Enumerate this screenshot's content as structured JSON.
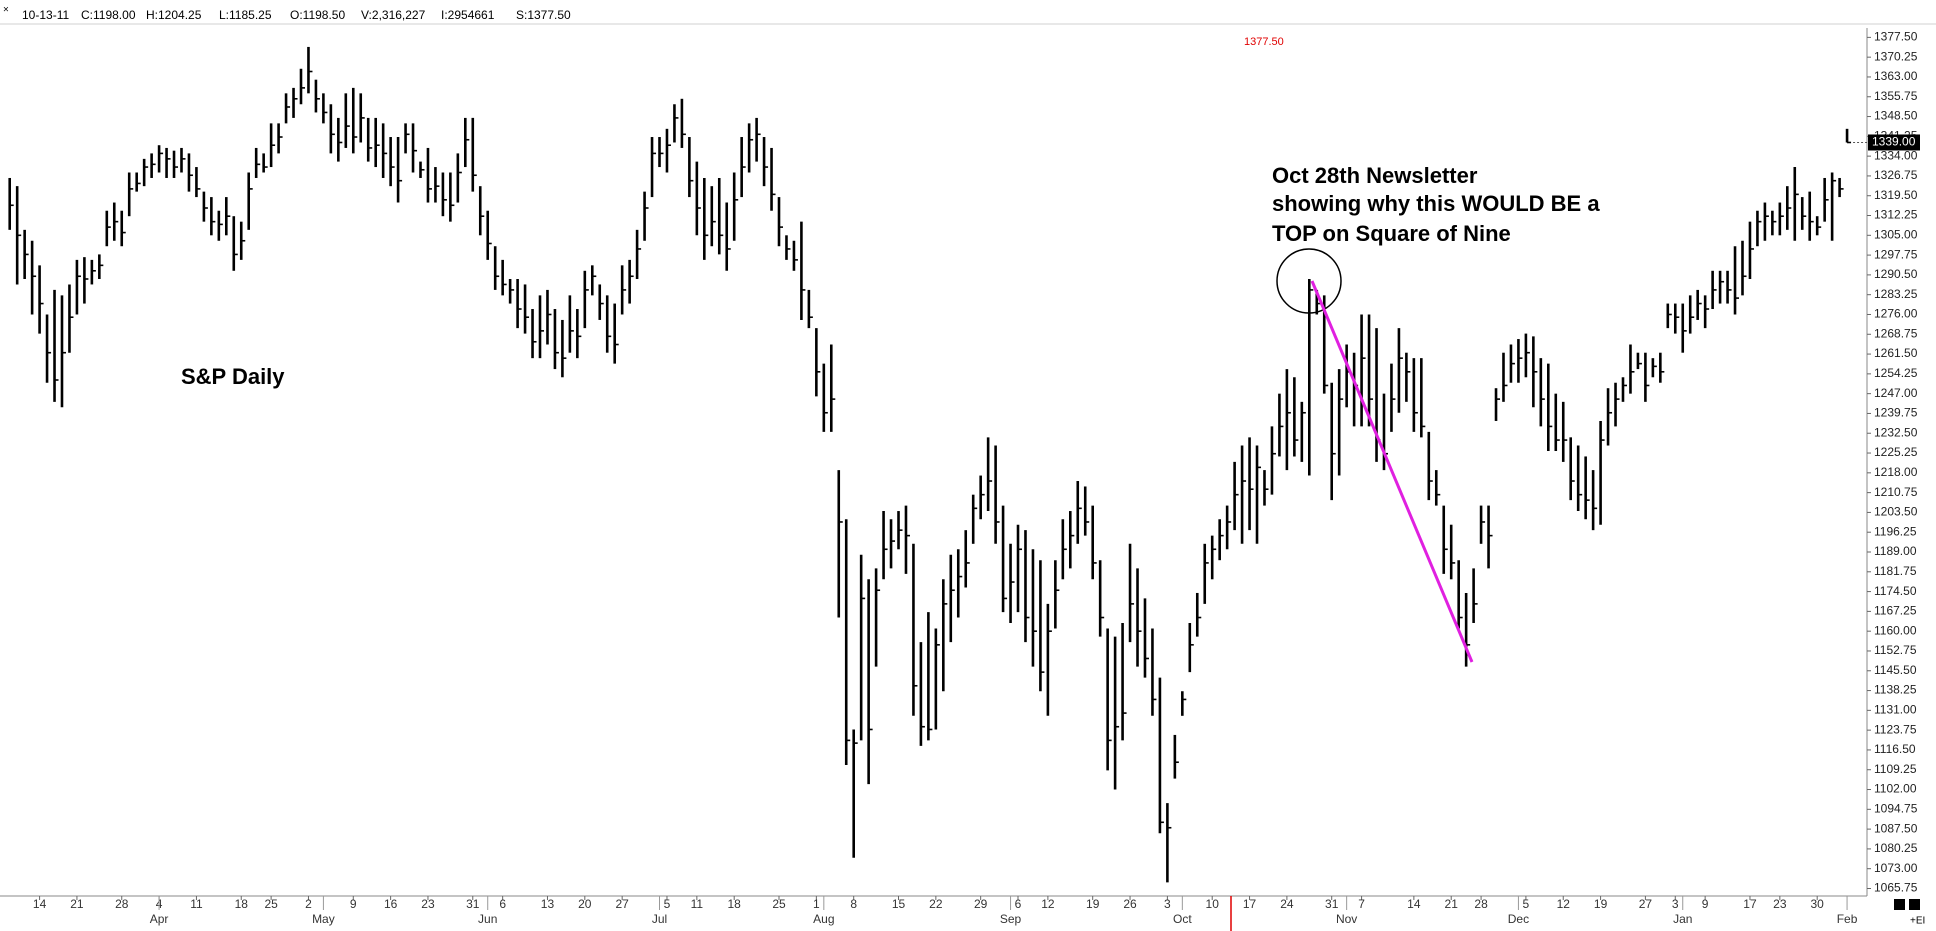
{
  "chart_data": {
    "type": "hlc",
    "close_button": "×",
    "header": [
      "10-13-11",
      "C:1198.00",
      "H:1204.25",
      "L:1185.25",
      "O:1198.50",
      "V:2,316,227",
      "I:2954661",
      "S:1377.50"
    ],
    "cursor_label": "1377.50",
    "annotations": [
      "Oct 28th Newsletter",
      "showing why this WOULD BE a",
      "TOP on Square of Nine"
    ],
    "last_price_label": "1339.00",
    "corner_label": "+EI",
    "xlim": [
      -1.3,
      248
    ],
    "ylim": [
      1063,
      1380.2
    ],
    "grid": false,
    "xticks": [
      {
        "value": 4,
        "label": "14"
      },
      {
        "value": 9,
        "label": "21"
      },
      {
        "value": 15,
        "label": "28"
      },
      {
        "value": 20,
        "label": "4"
      },
      {
        "value": 25,
        "label": "11"
      },
      {
        "value": 31,
        "label": "18"
      },
      {
        "value": 35,
        "label": "25"
      },
      {
        "value": 40,
        "label": "2"
      },
      {
        "value": 46,
        "label": "9"
      },
      {
        "value": 51,
        "label": "16"
      },
      {
        "value": 56,
        "label": "23"
      },
      {
        "value": 62,
        "label": "31"
      },
      {
        "value": 66,
        "label": "6"
      },
      {
        "value": 72,
        "label": "13"
      },
      {
        "value": 77,
        "label": "20"
      },
      {
        "value": 82,
        "label": "27"
      },
      {
        "value": 88,
        "label": "5"
      },
      {
        "value": 92,
        "label": "11"
      },
      {
        "value": 97,
        "label": "18"
      },
      {
        "value": 103,
        "label": "25"
      },
      {
        "value": 108,
        "label": "1"
      },
      {
        "value": 113,
        "label": "8"
      },
      {
        "value": 119,
        "label": "15"
      },
      {
        "value": 124,
        "label": "22"
      },
      {
        "value": 130,
        "label": "29"
      },
      {
        "value": 135,
        "label": "6"
      },
      {
        "value": 139,
        "label": "12"
      },
      {
        "value": 145,
        "label": "19"
      },
      {
        "value": 150,
        "label": "26"
      },
      {
        "value": 155,
        "label": "3"
      },
      {
        "value": 161,
        "label": "10"
      },
      {
        "value": 166,
        "label": "17"
      },
      {
        "value": 171,
        "label": "24"
      },
      {
        "value": 177,
        "label": "31"
      },
      {
        "value": 181,
        "label": "7"
      },
      {
        "value": 188,
        "label": "14"
      },
      {
        "value": 193,
        "label": "21"
      },
      {
        "value": 197,
        "label": "28"
      },
      {
        "value": 203,
        "label": "5"
      },
      {
        "value": 208,
        "label": "12"
      },
      {
        "value": 213,
        "label": "19"
      },
      {
        "value": 219,
        "label": "27"
      },
      {
        "value": 223,
        "label": "3"
      },
      {
        "value": 227,
        "label": "9"
      },
      {
        "value": 233,
        "label": "17"
      },
      {
        "value": 237,
        "label": "23"
      },
      {
        "value": 242,
        "label": "30"
      }
    ],
    "month_ticks": [
      {
        "value": 20,
        "label": "Apr"
      },
      {
        "value": 42,
        "label": "May"
      },
      {
        "value": 64,
        "label": "Jun"
      },
      {
        "value": 87,
        "label": "Jul"
      },
      {
        "value": 109,
        "label": "Aug"
      },
      {
        "value": 134,
        "label": "Sep"
      },
      {
        "value": 157,
        "label": "Oct"
      },
      {
        "value": 179,
        "label": "Nov"
      },
      {
        "value": 202,
        "label": "Dec"
      },
      {
        "value": 224,
        "label": "Jan"
      },
      {
        "value": 246,
        "label": "Feb"
      }
    ],
    "yticks": [
      {
        "value": 1377.5,
        "label": "1377.50"
      },
      {
        "value": 1370.25,
        "label": "1370.25"
      },
      {
        "value": 1363,
        "label": "1363.00"
      },
      {
        "value": 1355.75,
        "label": "1355.75"
      },
      {
        "value": 1348.5,
        "label": "1348.50"
      },
      {
        "value": 1341.25,
        "label": "1341.25"
      },
      {
        "value": 1334,
        "label": "1334.00"
      },
      {
        "value": 1326.75,
        "label": "1326.75"
      },
      {
        "value": 1319.5,
        "label": "1319.50"
      },
      {
        "value": 1312.25,
        "label": "1312.25"
      },
      {
        "value": 1305,
        "label": "1305.00"
      },
      {
        "value": 1297.75,
        "label": "1297.75"
      },
      {
        "value": 1290.5,
        "label": "1290.50"
      },
      {
        "value": 1283.25,
        "label": "1283.25"
      },
      {
        "value": 1276,
        "label": "1276.00"
      },
      {
        "value": 1268.75,
        "label": "1268.75"
      },
      {
        "value": 1261.5,
        "label": "1261.50"
      },
      {
        "value": 1254.25,
        "label": "1254.25"
      },
      {
        "value": 1247,
        "label": "1247.00"
      },
      {
        "value": 1239.75,
        "label": "1239.75"
      },
      {
        "value": 1232.5,
        "label": "1232.50"
      },
      {
        "value": 1225.25,
        "label": "1225.25"
      },
      {
        "value": 1218,
        "label": "1218.00"
      },
      {
        "value": 1210.75,
        "label": "1210.75"
      },
      {
        "value": 1203.5,
        "label": "1203.50"
      },
      {
        "value": 1196.25,
        "label": "1196.25"
      },
      {
        "value": 1189,
        "label": "1189.00"
      },
      {
        "value": 1181.75,
        "label": "1181.75"
      },
      {
        "value": 1174.5,
        "label": "1174.50"
      },
      {
        "value": 1167.25,
        "label": "1167.25"
      },
      {
        "value": 1160,
        "label": "1160.00"
      },
      {
        "value": 1152.75,
        "label": "1152.75"
      },
      {
        "value": 1145.5,
        "label": "1145.50"
      },
      {
        "value": 1138.25,
        "label": "1138.25"
      },
      {
        "value": 1131,
        "label": "1131.00"
      },
      {
        "value": 1123.75,
        "label": "1123.75"
      },
      {
        "value": 1116.5,
        "label": "1116.50"
      },
      {
        "value": 1109.25,
        "label": "1109.25"
      },
      {
        "value": 1102,
        "label": "1102.00"
      },
      {
        "value": 1094.75,
        "label": "1094.75"
      },
      {
        "value": 1087.5,
        "label": "1087.50"
      },
      {
        "value": 1080.25,
        "label": "1080.25"
      },
      {
        "value": 1073,
        "label": "1073.00"
      },
      {
        "value": 1065.75,
        "label": "1065.75"
      }
    ],
    "series": [
      {
        "name": "S&P Daily",
        "color": "#000000",
        "high": [
          1326,
          1323,
          1307,
          1303,
          1294,
          1276,
          1285,
          1283,
          1287,
          1296,
          1297,
          1296,
          1298,
          1314,
          1317,
          1314,
          1328,
          1328,
          1333,
          1335,
          1338,
          1337,
          1336,
          1337,
          1335,
          1330,
          1321,
          1319,
          1314,
          1319,
          1312,
          1310,
          1328,
          1337,
          1335,
          1346,
          1346,
          1357,
          1359,
          1366,
          1374,
          1362,
          1357,
          1353,
          1348,
          1357,
          1359,
          1357,
          1348,
          1348,
          1346,
          1341,
          1341,
          1346,
          1346,
          1332,
          1337,
          1330,
          1328,
          1328,
          1335,
          1348,
          1348,
          1323,
          1314,
          1301,
          1296,
          1289,
          1289,
          1287,
          1278,
          1283,
          1285,
          1278,
          1274,
          1283,
          1278,
          1292,
          1294,
          1287,
          1283,
          1280,
          1294,
          1296,
          1307,
          1321,
          1341,
          1341,
          1344,
          1353,
          1355,
          1341,
          1332,
          1326,
          1323,
          1326,
          1317,
          1328,
          1341,
          1346,
          1348,
          1341,
          1337,
          1319,
          1305,
          1303,
          1310,
          1285,
          1271,
          1258,
          1265,
          1219,
          1201,
          1124,
          1188,
          1179,
          1183,
          1204,
          1201,
          1204,
          1206,
          1192,
          1156,
          1167,
          1161,
          1179,
          1188,
          1190,
          1197,
          1210,
          1217,
          1231,
          1228,
          1206,
          1192,
          1199,
          1197,
          1190,
          1186,
          1170,
          1186,
          1201,
          1204,
          1215,
          1213,
          1206,
          1186,
          1161,
          1158,
          1163,
          1192,
          1183,
          1172,
          1161,
          1143,
          1097,
          1122,
          1138,
          1163,
          1174,
          1192,
          1195,
          1201,
          1206,
          1222,
          1228,
          1231,
          1228,
          1219,
          1235,
          1247,
          1256,
          1253,
          1244,
          1289,
          1285,
          1283,
          1251,
          1256,
          1265,
          1262,
          1276,
          1276,
          1271,
          1247,
          1258,
          1271,
          1262,
          1260,
          1260,
          1233,
          1219,
          1206,
          1199,
          1186,
          1174,
          1183,
          1206,
          1206,
          1249,
          1262,
          1265,
          1267,
          1269,
          1268,
          1260,
          1258,
          1247,
          1244,
          1231,
          1228,
          1224,
          1219,
          1237,
          1249,
          1251,
          1253,
          1265,
          1262,
          1262,
          1260,
          1262,
          1280,
          1280,
          1280,
          1283,
          1285,
          1283,
          1292,
          1292,
          1292,
          1301,
          1303,
          1310,
          1314,
          1317,
          1314,
          1317,
          1323,
          1330,
          1319,
          1321,
          1312,
          1326,
          1328,
          1326,
          1344
        ],
        "low": [
          1307,
          1287,
          1289,
          1276,
          1269,
          1251,
          1244,
          1242,
          1262,
          1276,
          1280,
          1287,
          1289,
          1301,
          1303,
          1301,
          1312,
          1321,
          1323,
          1326,
          1328,
          1326,
          1326,
          1328,
          1321,
          1319,
          1310,
          1305,
          1303,
          1305,
          1292,
          1296,
          1307,
          1326,
          1328,
          1330,
          1335,
          1346,
          1348,
          1353,
          1357,
          1350,
          1346,
          1335,
          1332,
          1337,
          1335,
          1339,
          1332,
          1330,
          1326,
          1323,
          1317,
          1335,
          1328,
          1326,
          1317,
          1317,
          1312,
          1310,
          1317,
          1330,
          1321,
          1305,
          1296,
          1285,
          1283,
          1280,
          1271,
          1269,
          1260,
          1260,
          1265,
          1256,
          1253,
          1262,
          1260,
          1271,
          1283,
          1274,
          1262,
          1258,
          1276,
          1280,
          1289,
          1303,
          1319,
          1330,
          1328,
          1339,
          1337,
          1319,
          1305,
          1296,
          1301,
          1298,
          1292,
          1303,
          1319,
          1328,
          1332,
          1323,
          1314,
          1301,
          1296,
          1292,
          1274,
          1271,
          1246,
          1233,
          1233,
          1165,
          1111,
          1077,
          1120,
          1104,
          1147,
          1179,
          1183,
          1190,
          1181,
          1129,
          1118,
          1120,
          1124,
          1138,
          1156,
          1165,
          1176,
          1192,
          1201,
          1204,
          1192,
          1167,
          1163,
          1167,
          1156,
          1147,
          1138,
          1129,
          1161,
          1179,
          1183,
          1192,
          1195,
          1179,
          1158,
          1109,
          1102,
          1120,
          1156,
          1147,
          1143,
          1129,
          1086,
          1068,
          1106,
          1129,
          1145,
          1158,
          1170,
          1179,
          1186,
          1190,
          1197,
          1192,
          1197,
          1192,
          1206,
          1210,
          1224,
          1219,
          1224,
          1222,
          1217,
          1276,
          1247,
          1208,
          1217,
          1242,
          1235,
          1235,
          1235,
          1222,
          1219,
          1233,
          1240,
          1244,
          1233,
          1231,
          1208,
          1206,
          1181,
          1179,
          1161,
          1147,
          1163,
          1192,
          1183,
          1237,
          1244,
          1251,
          1251,
          1253,
          1242,
          1235,
          1226,
          1226,
          1222,
          1208,
          1204,
          1201,
          1197,
          1199,
          1228,
          1235,
          1244,
          1247,
          1256,
          1244,
          1253,
          1251,
          1271,
          1269,
          1262,
          1269,
          1274,
          1271,
          1278,
          1280,
          1280,
          1276,
          1283,
          1289,
          1301,
          1303,
          1305,
          1305,
          1307,
          1303,
          1307,
          1303,
          1305,
          1310,
          1303,
          1319,
          1339
        ],
        "close": [
          1316,
          1305,
          1298,
          1290,
          1280,
          1262,
          1252,
          1262,
          1275,
          1290,
          1289,
          1292,
          1294,
          1308,
          1310,
          1306,
          1322,
          1324,
          1330,
          1331,
          1335,
          1333,
          1330,
          1333,
          1327,
          1322,
          1315,
          1310,
          1309,
          1312,
          1298,
          1303,
          1322,
          1331,
          1330,
          1338,
          1341,
          1352,
          1355,
          1359,
          1365,
          1355,
          1350,
          1342,
          1339,
          1345,
          1341,
          1348,
          1337,
          1338,
          1335,
          1330,
          1325,
          1342,
          1336,
          1329,
          1322,
          1323,
          1318,
          1316,
          1328,
          1340,
          1327,
          1312,
          1302,
          1290,
          1287,
          1285,
          1278,
          1275,
          1266,
          1270,
          1276,
          1262,
          1260,
          1270,
          1268,
          1285,
          1290,
          1280,
          1268,
          1265,
          1285,
          1290,
          1300,
          1315,
          1335,
          1335,
          1338,
          1348,
          1342,
          1325,
          1315,
          1305,
          1310,
          1305,
          1300,
          1318,
          1330,
          1340,
          1342,
          1330,
          1320,
          1308,
          1300,
          1296,
          1285,
          1275,
          1255,
          1240,
          1245,
          1200,
          1120,
          1119,
          1172,
          1124,
          1175,
          1190,
          1193,
          1197,
          1195,
          1140,
          1125,
          1124,
          1155,
          1170,
          1175,
          1180,
          1185,
          1205,
          1210,
          1215,
          1200,
          1172,
          1178,
          1190,
          1165,
          1160,
          1145,
          1160,
          1175,
          1190,
          1195,
          1205,
          1200,
          1185,
          1165,
          1120,
          1125,
          1130,
          1170,
          1160,
          1150,
          1135,
          1090,
          1088,
          1112,
          1135,
          1155,
          1165,
          1185,
          1190,
          1195,
          1200,
          1210,
          1215,
          1212,
          1220,
          1212,
          1225,
          1235,
          1240,
          1230,
          1240,
          1285,
          1280,
          1250,
          1225,
          1245,
          1255,
          1250,
          1260,
          1245,
          1230,
          1225,
          1245,
          1260,
          1255,
          1240,
          1235,
          1215,
          1210,
          1190,
          1185,
          1165,
          1155,
          1170,
          1200,
          1195,
          1245,
          1250,
          1258,
          1260,
          1262,
          1255,
          1245,
          1235,
          1230,
          1230,
          1215,
          1210,
          1208,
          1205,
          1230,
          1240,
          1245,
          1250,
          1255,
          1258,
          1250,
          1257,
          1255,
          1276,
          1275,
          1270,
          1275,
          1280,
          1278,
          1285,
          1288,
          1285,
          1282,
          1290,
          1300,
          1310,
          1312,
          1310,
          1312,
          1315,
          1320,
          1312,
          1310,
          1308,
          1318,
          1325,
          1322,
          1339
        ]
      }
    ]
  }
}
